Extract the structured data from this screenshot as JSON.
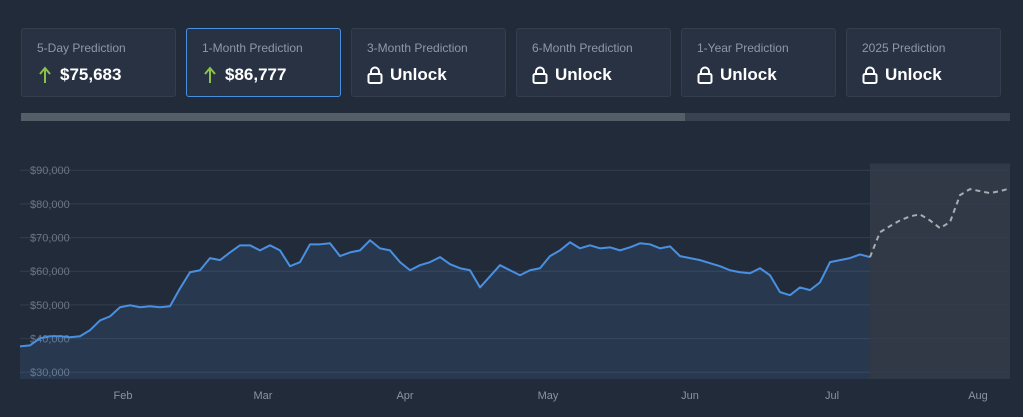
{
  "cards": [
    {
      "label": "5-Day Prediction",
      "value": "$75,683"
    },
    {
      "label": "1-Month Prediction",
      "value": "$86,777"
    },
    {
      "label": "3-Month Prediction",
      "value": "Unlock"
    },
    {
      "label": "6-Month Prediction",
      "value": "Unlock"
    },
    {
      "label": "1-Year Prediction",
      "value": "Unlock"
    },
    {
      "label": "2025 Prediction",
      "value": "Unlock"
    }
  ],
  "chart_data": {
    "type": "line",
    "xlim": [
      0,
      99
    ],
    "xticks": [
      {
        "value": 10.3,
        "label": "Feb"
      },
      {
        "value": 24.3,
        "label": "Mar"
      },
      {
        "value": 38.5,
        "label": "Apr"
      },
      {
        "value": 52.8,
        "label": "May"
      },
      {
        "value": 67,
        "label": "Jun"
      },
      {
        "value": 81.2,
        "label": "Jul"
      },
      {
        "value": 95.8,
        "label": "Aug"
      }
    ],
    "ylim": [
      28000,
      92000
    ],
    "yticks": [
      {
        "value": 30000,
        "label": "$30,000"
      },
      {
        "value": 40000,
        "label": "$40,000"
      },
      {
        "value": 50000,
        "label": "$50,000"
      },
      {
        "value": 60000,
        "label": "$60,000"
      },
      {
        "value": 70000,
        "label": "$70,000"
      },
      {
        "value": 80000,
        "label": "$80,000"
      },
      {
        "value": 90000,
        "label": "$90,000"
      }
    ],
    "grid": true,
    "series": [
      {
        "color": "#4a90e2",
        "values": [
          37700,
          38000,
          40100,
          40700,
          40700,
          40400,
          40700,
          42500,
          45400,
          46600,
          49300,
          49900,
          49300,
          49600,
          49300,
          49600,
          54900,
          59700,
          60300,
          63900,
          63300,
          65600,
          67700,
          67700,
          66200,
          67700,
          66200,
          61500,
          62700,
          68000,
          68000,
          68300,
          64500,
          65600,
          66200,
          69200,
          66800,
          66200,
          62700,
          60300,
          61800,
          62700,
          64200,
          62100,
          60900,
          60300,
          55200,
          58500,
          61800,
          60300,
          58800,
          60300,
          60900,
          64500,
          66200,
          68600,
          66800,
          67700,
          66800,
          67100,
          66200,
          67100,
          68300,
          68000,
          66800,
          67400,
          64500,
          63900,
          63300,
          62400,
          61500,
          60300,
          59700,
          59400,
          60900,
          58800,
          53800,
          52900,
          55200,
          54400,
          56700,
          62700,
          63300,
          63900,
          65000,
          64200,
          null,
          null,
          null,
          null,
          null,
          null,
          null,
          null,
          null,
          null,
          null,
          null,
          null,
          null
        ]
      },
      {
        "color": "#a9adb3",
        "dashed": true,
        "values": [
          null,
          null,
          null,
          null,
          null,
          null,
          null,
          null,
          null,
          null,
          null,
          null,
          null,
          null,
          null,
          null,
          null,
          null,
          null,
          null,
          null,
          null,
          null,
          null,
          null,
          null,
          null,
          null,
          null,
          null,
          null,
          null,
          null,
          null,
          null,
          null,
          null,
          null,
          null,
          null,
          null,
          null,
          null,
          null,
          null,
          null,
          null,
          null,
          null,
          null,
          null,
          null,
          null,
          null,
          null,
          null,
          null,
          null,
          null,
          null,
          null,
          null,
          null,
          null,
          null,
          null,
          null,
          null,
          null,
          null,
          null,
          null,
          null,
          null,
          null,
          null,
          null,
          null,
          null,
          null,
          null,
          null,
          null,
          null,
          null,
          64200,
          71600,
          73400,
          75100,
          76300,
          76900,
          75100,
          72800,
          74600,
          82600,
          84400,
          83800,
          83200,
          83800,
          84600
        ]
      }
    ]
  }
}
